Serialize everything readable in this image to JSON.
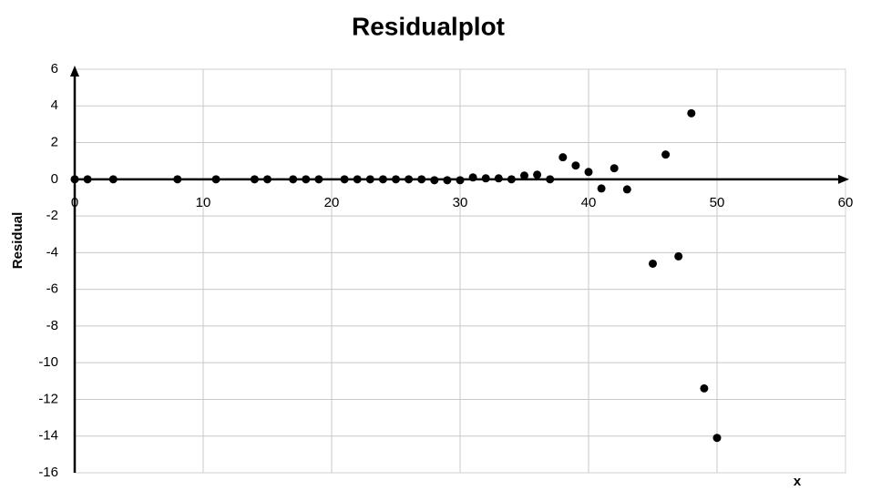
{
  "chart_data": {
    "type": "scatter",
    "title": "Residualplot",
    "x_label": "x",
    "y_label": "Residual",
    "x": [
      0,
      1,
      3,
      8,
      11,
      14,
      15,
      17,
      18,
      19,
      21,
      22,
      23,
      24,
      25,
      26,
      27,
      28,
      29,
      30,
      31,
      32,
      33,
      34,
      35,
      36,
      37,
      38,
      39,
      40,
      41,
      42,
      43,
      45,
      46,
      47,
      48,
      49,
      50
    ],
    "values": [
      0,
      0,
      0,
      0,
      0,
      0,
      0,
      0,
      0,
      0,
      0,
      0,
      0,
      0,
      0,
      0,
      0,
      -0.05,
      -0.05,
      -0.05,
      0.1,
      0.05,
      0.05,
      0,
      0.2,
      0.25,
      0,
      1.2,
      0.75,
      0.4,
      -0.5,
      0.6,
      -0.55,
      -4.6,
      1.35,
      -4.2,
      3.6,
      -11.4,
      -14.1
    ],
    "color": "#000000",
    "xlim": [
      0,
      60
    ],
    "xticks": [
      0,
      10,
      20,
      30,
      40,
      50,
      60
    ],
    "ylim": [
      -16,
      6
    ],
    "yticks": [
      -16,
      -14,
      -12,
      -10,
      -8,
      -6,
      -4,
      -2,
      0,
      2,
      4,
      6
    ],
    "grid": true
  }
}
